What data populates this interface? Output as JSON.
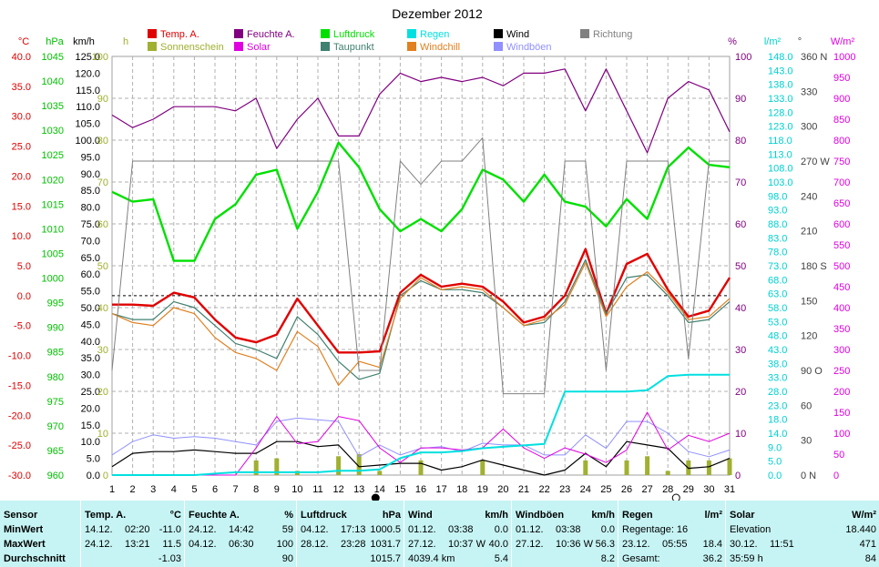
{
  "chart_data": {
    "type": "line",
    "title": "Dezember 2012",
    "x": [
      1,
      2,
      3,
      4,
      5,
      6,
      7,
      8,
      9,
      10,
      11,
      12,
      13,
      14,
      15,
      16,
      17,
      18,
      19,
      20,
      21,
      22,
      23,
      24,
      25,
      26,
      27,
      28,
      29,
      30,
      31
    ],
    "xlim": [
      1,
      31
    ],
    "legend": [
      {
        "name": "Temp. A.",
        "color": "#e00000"
      },
      {
        "name": "Sonnenschein",
        "color": "#a0b030"
      },
      {
        "name": "Feuchte A.",
        "color": "#800080"
      },
      {
        "name": "Solar",
        "color": "#e000e0"
      },
      {
        "name": "Luftdruck",
        "color": "#00e000"
      },
      {
        "name": "Taupunkt",
        "color": "#408070"
      },
      {
        "name": "Regen",
        "color": "#00e0e0"
      },
      {
        "name": "Windchill",
        "color": "#e08020"
      },
      {
        "name": "Wind",
        "color": "#000000"
      },
      {
        "name": "Windböen",
        "color": "#9090ff"
      },
      {
        "name": "Richtung",
        "color": "#808080"
      }
    ],
    "axes": [
      {
        "unit": "°C",
        "color": "#e00000",
        "ticks": [
          "40.0",
          "35.0",
          "30.0",
          "25.0",
          "20.0",
          "15.0",
          "10.0",
          "5.0",
          "0.0",
          "-5.0",
          "-10.0",
          "-15.0",
          "-20.0",
          "-25.0",
          "-30.0"
        ],
        "range": [
          -30,
          40
        ]
      },
      {
        "unit": "hPa",
        "color": "#00c000",
        "ticks": [
          "1045",
          "1040",
          "1035",
          "1030",
          "1025",
          "1020",
          "1015",
          "1010",
          "1005",
          "1000",
          "995",
          "990",
          "985",
          "980",
          "975",
          "970",
          "965",
          "960"
        ],
        "range": [
          960,
          1045
        ]
      },
      {
        "unit": "km/h",
        "color": "#000000",
        "ticks": [
          "125.0",
          "120.0",
          "115.0",
          "110.0",
          "105.0",
          "100.0",
          "95.0",
          "90.0",
          "85.0",
          "80.0",
          "75.0",
          "70.0",
          "65.0",
          "60.0",
          "55.0",
          "50.0",
          "45.0",
          "40.0",
          "35.0",
          "30.0",
          "25.0",
          "20.0",
          "15.0",
          "10.0",
          "5.0",
          "0.0"
        ],
        "range": [
          0,
          125
        ]
      },
      {
        "unit": "h",
        "color": "#a0b030",
        "ticks": [
          "100",
          "90",
          "80",
          "70",
          "60",
          "50",
          "40",
          "30",
          "20",
          "10",
          "0"
        ],
        "range": [
          0,
          100
        ]
      },
      {
        "unit": "%",
        "color": "#800080",
        "ticks": [
          "100",
          "90",
          "80",
          "70",
          "60",
          "50",
          "40",
          "30",
          "20",
          "10",
          "0"
        ],
        "range": [
          0,
          100
        ]
      },
      {
        "unit": "l/m²",
        "color": "#00d0d0",
        "ticks": [
          "148.0",
          "143.0",
          "138.0",
          "133.0",
          "128.0",
          "123.0",
          "118.0",
          "113.0",
          "108.0",
          "103.0",
          "98.0",
          "93.0",
          "88.0",
          "83.0",
          "78.0",
          "73.0",
          "68.0",
          "63.0",
          "58.0",
          "53.0",
          "48.0",
          "43.0",
          "38.0",
          "33.0",
          "28.0",
          "23.0",
          "18.0",
          "14.0",
          "9.0",
          "5.0",
          "0.0"
        ],
        "range": [
          0,
          148
        ]
      },
      {
        "unit": "°",
        "color": "#404040",
        "ticks": [
          "360 N",
          "330",
          "300",
          "270 W",
          "240",
          "210",
          "180 S",
          "150",
          "120",
          "90 O",
          "60",
          "30",
          "0 N"
        ],
        "range": [
          0,
          360
        ]
      },
      {
        "unit": "W/m²",
        "color": "#e000e0",
        "ticks": [
          "1000",
          "950",
          "900",
          "850",
          "800",
          "750",
          "700",
          "650",
          "600",
          "550",
          "500",
          "450",
          "400",
          "350",
          "300",
          "250",
          "200",
          "150",
          "100",
          "50",
          "0"
        ],
        "range": [
          0,
          1000
        ]
      }
    ],
    "series": [
      {
        "name": "Temp. A.",
        "axis": "°C",
        "color": "#e00000",
        "width": 2.4,
        "values": [
          -1.5,
          -1.5,
          -1.7,
          0.5,
          -0.3,
          -4.0,
          -7.0,
          -7.8,
          -6.5,
          -0.5,
          -5.0,
          -9.5,
          -9.5,
          -9.3,
          0.5,
          3.5,
          1.5,
          2.0,
          1.5,
          -1.0,
          -4.5,
          -3.5,
          0.0,
          7.8,
          -3.0,
          5.3,
          7.0,
          1.0,
          -3.5,
          -2.5,
          3.0
        ]
      },
      {
        "name": "Taupunkt",
        "axis": "°C",
        "color": "#408070",
        "width": 1.2,
        "values": [
          -3.0,
          -4.0,
          -4.0,
          -1.0,
          -2.0,
          -5.0,
          -8.0,
          -9.0,
          -10.5,
          -3.5,
          -6.5,
          -11.0,
          -14.0,
          -13.0,
          0.0,
          2.5,
          1.0,
          1.0,
          0.5,
          -2.0,
          -5.0,
          -4.5,
          -1.0,
          6.0,
          -3.0,
          3.0,
          3.5,
          0.0,
          -4.5,
          -4.0,
          -1.0
        ]
      },
      {
        "name": "Windchill",
        "axis": "°C",
        "color": "#e08020",
        "width": 1.2,
        "values": [
          -3.0,
          -4.5,
          -5.0,
          -2.0,
          -3.0,
          -7.0,
          -9.5,
          -10.5,
          -12.5,
          -6.0,
          -8.5,
          -15.0,
          -11.0,
          -12.0,
          -0.5,
          3.0,
          1.0,
          1.5,
          1.0,
          -2.0,
          -5.0,
          -4.0,
          -1.5,
          5.5,
          -3.5,
          1.5,
          4.0,
          0.5,
          -4.0,
          -3.5,
          -0.5
        ]
      },
      {
        "name": "Luftdruck",
        "axis": "hPa",
        "color": "#00e000",
        "width": 2.4,
        "values": [
          1017.5,
          1015.5,
          1016.0,
          1003.5,
          1003.5,
          1012.0,
          1015.0,
          1021.0,
          1022.0,
          1010.0,
          1017.5,
          1027.5,
          1022.5,
          1014.0,
          1009.5,
          1012.0,
          1009.5,
          1014.0,
          1022.0,
          1020.0,
          1015.5,
          1021.0,
          1015.5,
          1014.5,
          1010.5,
          1016.0,
          1012.0,
          1022.5,
          1026.5,
          1023.0,
          1022.5
        ]
      },
      {
        "name": "Feuchte A.",
        "axis": "%",
        "color": "#800080",
        "width": 1.2,
        "values": [
          86,
          83,
          85,
          88,
          88,
          88,
          87,
          90,
          78,
          85,
          90,
          81,
          81,
          91,
          96,
          94,
          95,
          94,
          95,
          93,
          96,
          96,
          97,
          87,
          97,
          87,
          77,
          90,
          94,
          92,
          82
        ]
      },
      {
        "name": "Richtung",
        "axis": "°",
        "color": "#808080",
        "width": 1.0,
        "values": [
          90,
          270,
          270,
          270,
          270,
          270,
          270,
          270,
          270,
          270,
          270,
          270,
          90,
          90,
          270,
          250,
          270,
          270,
          290,
          70,
          70,
          70,
          270,
          270,
          90,
          270,
          270,
          270,
          100,
          270,
          270
        ]
      },
      {
        "name": "Windböen",
        "axis": "km/h",
        "color": "#9090ff",
        "width": 1.0,
        "values": [
          6.0,
          10.0,
          12.0,
          11.0,
          11.5,
          11.0,
          10.0,
          9.0,
          16.0,
          17.0,
          16.5,
          16.0,
          5.5,
          9.0,
          6.0,
          8.0,
          8.5,
          7.0,
          9.5,
          9.0,
          9.0,
          6.0,
          6.0,
          12.0,
          8.0,
          16.0,
          16.0,
          12.5,
          7.0,
          5.5,
          7.5
        ]
      },
      {
        "name": "Wind",
        "axis": "km/h",
        "color": "#000000",
        "width": 1.2,
        "values": [
          2.5,
          6.5,
          7.0,
          7.0,
          7.5,
          7.0,
          6.5,
          6.5,
          10.0,
          10.0,
          8.5,
          9.0,
          2.5,
          3.0,
          3.5,
          3.5,
          1.5,
          2.5,
          4.5,
          3.0,
          1.5,
          0.0,
          1.5,
          6.5,
          2.5,
          10.0,
          9.0,
          8.0,
          2.0,
          2.5,
          5.0
        ]
      },
      {
        "name": "Solar",
        "axis": "W/m²",
        "color": "#e000e0",
        "width": 1.0,
        "values": [
          0,
          0,
          0,
          0,
          0,
          0,
          0,
          65,
          140,
          75,
          80,
          140,
          130,
          65,
          30,
          65,
          65,
          60,
          65,
          110,
          65,
          40,
          65,
          50,
          30,
          60,
          150,
          60,
          95,
          80,
          100
        ]
      },
      {
        "name": "Regen",
        "axis": "l/m²",
        "color": "#00e0e0",
        "width": 2.0,
        "values": [
          0.0,
          0.0,
          0.0,
          0.0,
          0.0,
          0.5,
          1.0,
          1.0,
          1.0,
          1.0,
          1.0,
          1.5,
          1.5,
          2.0,
          6.0,
          8.0,
          8.0,
          8.5,
          9.5,
          10.0,
          10.5,
          11.0,
          29.5,
          29.5,
          29.5,
          29.5,
          30.0,
          35.0,
          35.5,
          35.5,
          35.5
        ]
      },
      {
        "name": "Sonnenschein",
        "axis": "h",
        "color": "#a0b030",
        "type": "bar",
        "values": [
          0,
          0,
          0,
          0,
          0,
          0,
          0,
          3.5,
          4.0,
          1.0,
          0,
          4.5,
          5.0,
          1.0,
          0,
          3.5,
          0,
          0,
          3.5,
          0,
          0,
          0,
          0,
          3.5,
          0,
          3.5,
          4.5,
          1.0,
          3.5,
          3.5,
          4.0
        ]
      }
    ],
    "zero_line_temp": 0.0,
    "moon_markers": [
      {
        "x": 13.8,
        "phase": "new"
      },
      {
        "x": 28.4,
        "phase": "full"
      }
    ]
  },
  "stats": {
    "header_label": "Sensor",
    "row_labels": [
      "MinWert",
      "MaxWert",
      "Durchschnitt"
    ],
    "columns": [
      {
        "title": "Temp. A.",
        "unit": "°C",
        "rows": [
          [
            "14.12.",
            "02:20",
            "-11.0"
          ],
          [
            "24.12.",
            "13:21",
            "11.5"
          ],
          [
            "",
            "",
            "-1.03"
          ]
        ]
      },
      {
        "title": "Feuchte A.",
        "unit": "%",
        "rows": [
          [
            "24.12.",
            "14:42",
            "59"
          ],
          [
            "04.12.",
            "06:30",
            "100"
          ],
          [
            "",
            "",
            "90"
          ]
        ]
      },
      {
        "title": "Luftdruck",
        "unit": "hPa",
        "rows": [
          [
            "04.12.",
            "17:13",
            "1000.5"
          ],
          [
            "28.12.",
            "23:28",
            "1031.7"
          ],
          [
            "",
            "",
            "1015.7"
          ]
        ]
      },
      {
        "title": "Wind",
        "unit": "km/h",
        "rows": [
          [
            "01.12.",
            "03:38",
            "0.0"
          ],
          [
            "27.12.",
            "10:37 W",
            "40.0"
          ],
          [
            "4039.4 km",
            "",
            "5.4"
          ]
        ]
      },
      {
        "title": "Windböen",
        "unit": "km/h",
        "rows": [
          [
            "01.12.",
            "03:38",
            "0.0"
          ],
          [
            "27.12.",
            "10:36 W",
            "56.3"
          ],
          [
            "",
            "",
            "8.2"
          ]
        ]
      },
      {
        "title": "Regen",
        "unit": "l/m²",
        "rows": [
          [
            "Regentage: 16",
            "",
            ""
          ],
          [
            "23.12.",
            "05:55",
            "18.4"
          ],
          [
            "Gesamt:",
            "",
            "36.2"
          ]
        ]
      },
      {
        "title": "Solar",
        "unit": "W/m²",
        "rows": [
          [
            "Elevation",
            "",
            "18.440"
          ],
          [
            "30.12.",
            "11:51",
            "471"
          ],
          [
            "35:59 h",
            "",
            "84"
          ]
        ]
      }
    ]
  }
}
